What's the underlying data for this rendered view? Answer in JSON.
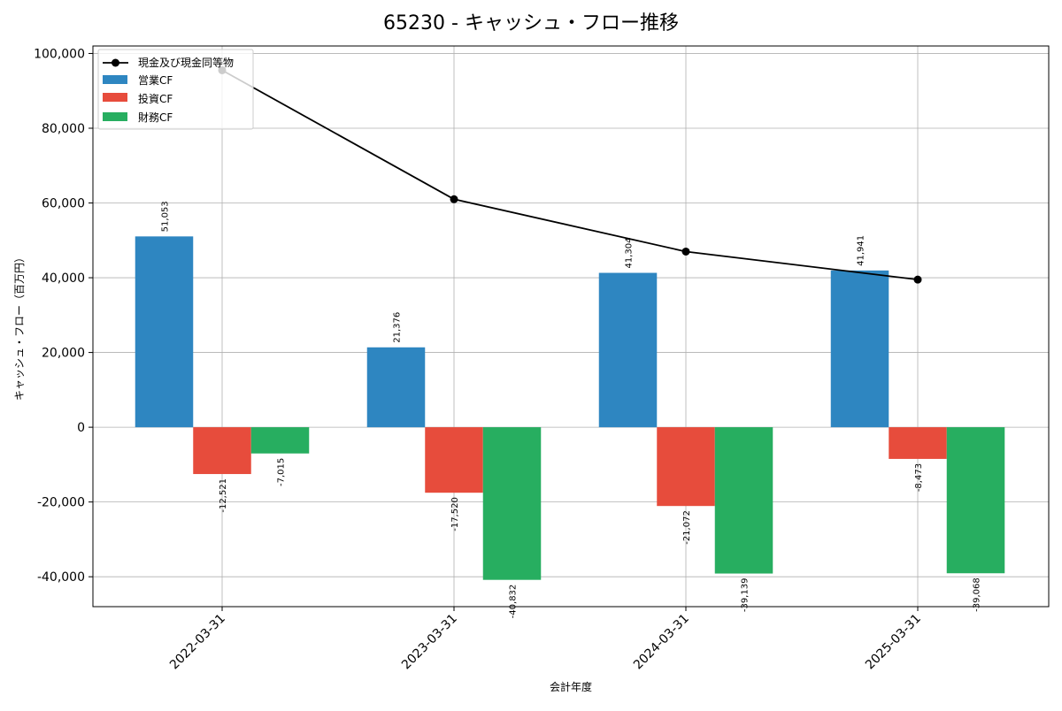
{
  "chart_data": {
    "type": "bar",
    "title": "65230 - キャッシュ・フロー推移",
    "xlabel": "会計年度",
    "ylabel": "キャッシュ・フロー（百万円）",
    "categories": [
      "2022-03-31",
      "2023-03-31",
      "2024-03-31",
      "2025-03-31"
    ],
    "series": [
      {
        "name": "営業CF",
        "type": "bar",
        "color": "#2e86c1",
        "values": [
          51053,
          21376,
          41304,
          41941
        ],
        "labels": [
          "51,053",
          "21,376",
          "41,304",
          "41,941"
        ]
      },
      {
        "name": "投資CF",
        "type": "bar",
        "color": "#e74c3c",
        "values": [
          -12521,
          -17520,
          -21072,
          -8473
        ],
        "labels": [
          "-12,521",
          "-17,520",
          "-21,072",
          "-8,473"
        ]
      },
      {
        "name": "財務CF",
        "type": "bar",
        "color": "#27ae60",
        "values": [
          -7015,
          -40832,
          -39139,
          -39068
        ],
        "labels": [
          "-7,015",
          "-40,832",
          "-39,139",
          "-39,068"
        ]
      }
    ],
    "line_series": {
      "name": "現金及び現金同等物",
      "type": "line",
      "color": "#000000",
      "values": [
        95500,
        61000,
        47000,
        39500
      ]
    },
    "ylim": [
      -48000,
      102000
    ],
    "yticks": [
      -40000,
      -20000,
      0,
      20000,
      40000,
      60000,
      80000,
      100000
    ],
    "ytick_labels": [
      "-40,000",
      "-20,000",
      "0",
      "20,000",
      "40,000",
      "60,000",
      "80,000",
      "100,000"
    ],
    "grid": true,
    "legend_position": "top-left"
  }
}
